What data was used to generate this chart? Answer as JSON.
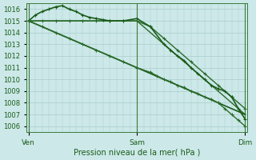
{
  "bg_color": "#cce8e8",
  "grid_color": "#aacccc",
  "xlabel": "Pression niveau de la mer( hPa )",
  "xtick_labels": [
    "Ven",
    "Sam",
    "Dim"
  ],
  "xtick_positions": [
    0,
    48,
    96
  ],
  "ylim": [
    1005.5,
    1016.5
  ],
  "yticks": [
    1006,
    1007,
    1008,
    1009,
    1010,
    1011,
    1012,
    1013,
    1014,
    1015,
    1016
  ],
  "series": [
    {
      "x": [
        0,
        6,
        12,
        18,
        24,
        30,
        36,
        42,
        48,
        54,
        60,
        66,
        72,
        78,
        84,
        90,
        96
      ],
      "y": [
        1015.0,
        1015.0,
        1015.0,
        1015.0,
        1015.0,
        1015.0,
        1015.0,
        1015.0,
        1015.0,
        1014.0,
        1013.0,
        1012.0,
        1011.0,
        1010.0,
        1009.0,
        1008.0,
        1007.0
      ],
      "marker": null,
      "lw": 1.0,
      "color": "#2a6b2a",
      "ms": 0
    },
    {
      "x": [
        0,
        6,
        12,
        18,
        24,
        30,
        36,
        42,
        48,
        54,
        60,
        66,
        72,
        78,
        84,
        90,
        96
      ],
      "y": [
        1015.0,
        1015.0,
        1015.0,
        1015.0,
        1015.0,
        1015.0,
        1015.0,
        1015.0,
        1015.0,
        1014.5,
        1013.5,
        1012.5,
        1011.5,
        1010.5,
        1009.5,
        1008.5,
        1007.5
      ],
      "marker": "+",
      "lw": 1.0,
      "color": "#2a6b2a",
      "ms": 3
    },
    {
      "x": [
        0,
        3,
        6,
        9,
        12,
        15,
        18,
        21,
        24,
        27,
        30,
        33,
        36,
        42,
        48,
        54,
        60,
        63,
        66,
        69,
        72,
        75,
        78,
        81,
        84,
        87,
        90,
        93,
        96
      ],
      "y": [
        1015.0,
        1015.5,
        1015.8,
        1016.0,
        1016.2,
        1016.3,
        1016.0,
        1015.8,
        1015.5,
        1015.3,
        1015.2,
        1015.1,
        1015.0,
        1015.0,
        1015.2,
        1014.5,
        1013.0,
        1012.5,
        1012.0,
        1011.6,
        1011.0,
        1010.5,
        1010.0,
        1009.5,
        1009.2,
        1009.0,
        1008.5,
        1007.5,
        1006.6
      ],
      "marker": "+",
      "lw": 1.2,
      "color": "#1a5c1a",
      "ms": 3
    },
    {
      "x": [
        0,
        6,
        12,
        18,
        24,
        30,
        36,
        42,
        48,
        54,
        60,
        66,
        72,
        78,
        84,
        90,
        96
      ],
      "y": [
        1015.0,
        1014.5,
        1014.0,
        1013.5,
        1013.0,
        1012.5,
        1012.0,
        1011.5,
        1011.0,
        1010.5,
        1010.0,
        1009.5,
        1009.0,
        1008.5,
        1008.0,
        1007.5,
        1007.0
      ],
      "marker": null,
      "lw": 1.2,
      "color": "#1a5c1a",
      "ms": 0
    },
    {
      "x": [
        0,
        6,
        12,
        18,
        24,
        30,
        36,
        42,
        48,
        54,
        57,
        60,
        63,
        66,
        69,
        72,
        75,
        78,
        81,
        84,
        87,
        90,
        93,
        96
      ],
      "y": [
        1015.0,
        1014.5,
        1014.0,
        1013.5,
        1013.0,
        1012.5,
        1012.0,
        1011.5,
        1011.0,
        1010.6,
        1010.3,
        1010.0,
        1009.8,
        1009.5,
        1009.3,
        1009.0,
        1008.8,
        1008.5,
        1008.3,
        1008.0,
        1007.5,
        1007.0,
        1006.5,
        1006.0
      ],
      "marker": "+",
      "lw": 1.0,
      "color": "#2a6b2a",
      "ms": 3
    }
  ],
  "vlines": [
    0,
    48,
    96
  ],
  "vline_color": "#3a7a3a"
}
